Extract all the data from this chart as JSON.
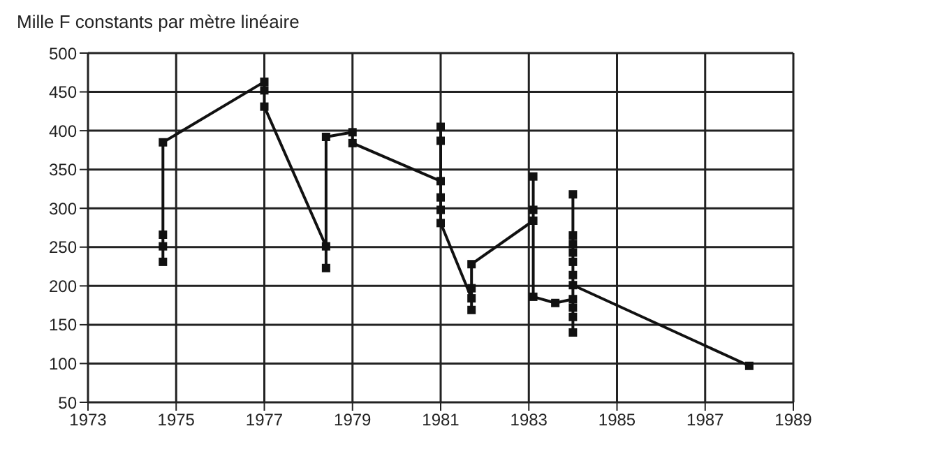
{
  "chart_data": {
    "type": "line",
    "ylabel": "Mille F constants par mètre linéaire",
    "xlim": [
      1973,
      1989
    ],
    "xticks": [
      1973,
      1975,
      1977,
      1979,
      1981,
      1983,
      1985,
      1987,
      1989
    ],
    "ylim": [
      50,
      500
    ],
    "yticks": [
      50,
      100,
      150,
      200,
      250,
      300,
      350,
      400,
      450,
      500
    ],
    "grid": true,
    "marker": "square",
    "line_style": "solid",
    "series": [
      {
        "color": "#111111",
        "x": [
          1974.7,
          1974.7,
          1974.7,
          1974.7,
          1977,
          1977,
          1977,
          1978.4,
          1978.4,
          1978.4,
          1979,
          1979,
          1981,
          1981,
          1981,
          1981,
          1981,
          1981,
          1981.7,
          1981.7,
          1981.7,
          1981.7,
          1983.1,
          1983.1,
          1983.1,
          1983.1,
          1983.6,
          1984,
          1984,
          1984,
          1984,
          1984,
          1984,
          1984,
          1984,
          1984,
          1984,
          1984,
          1988
        ],
        "values": [
          231,
          251,
          266,
          385,
          463,
          452,
          431,
          251,
          223,
          392,
          398,
          384,
          335,
          405,
          387,
          314,
          298,
          281,
          184,
          169,
          197,
          228,
          284,
          298,
          341,
          186,
          178,
          183,
          172,
          160,
          140,
          318,
          265,
          254,
          243,
          231,
          214,
          201,
          97
        ]
      }
    ]
  }
}
